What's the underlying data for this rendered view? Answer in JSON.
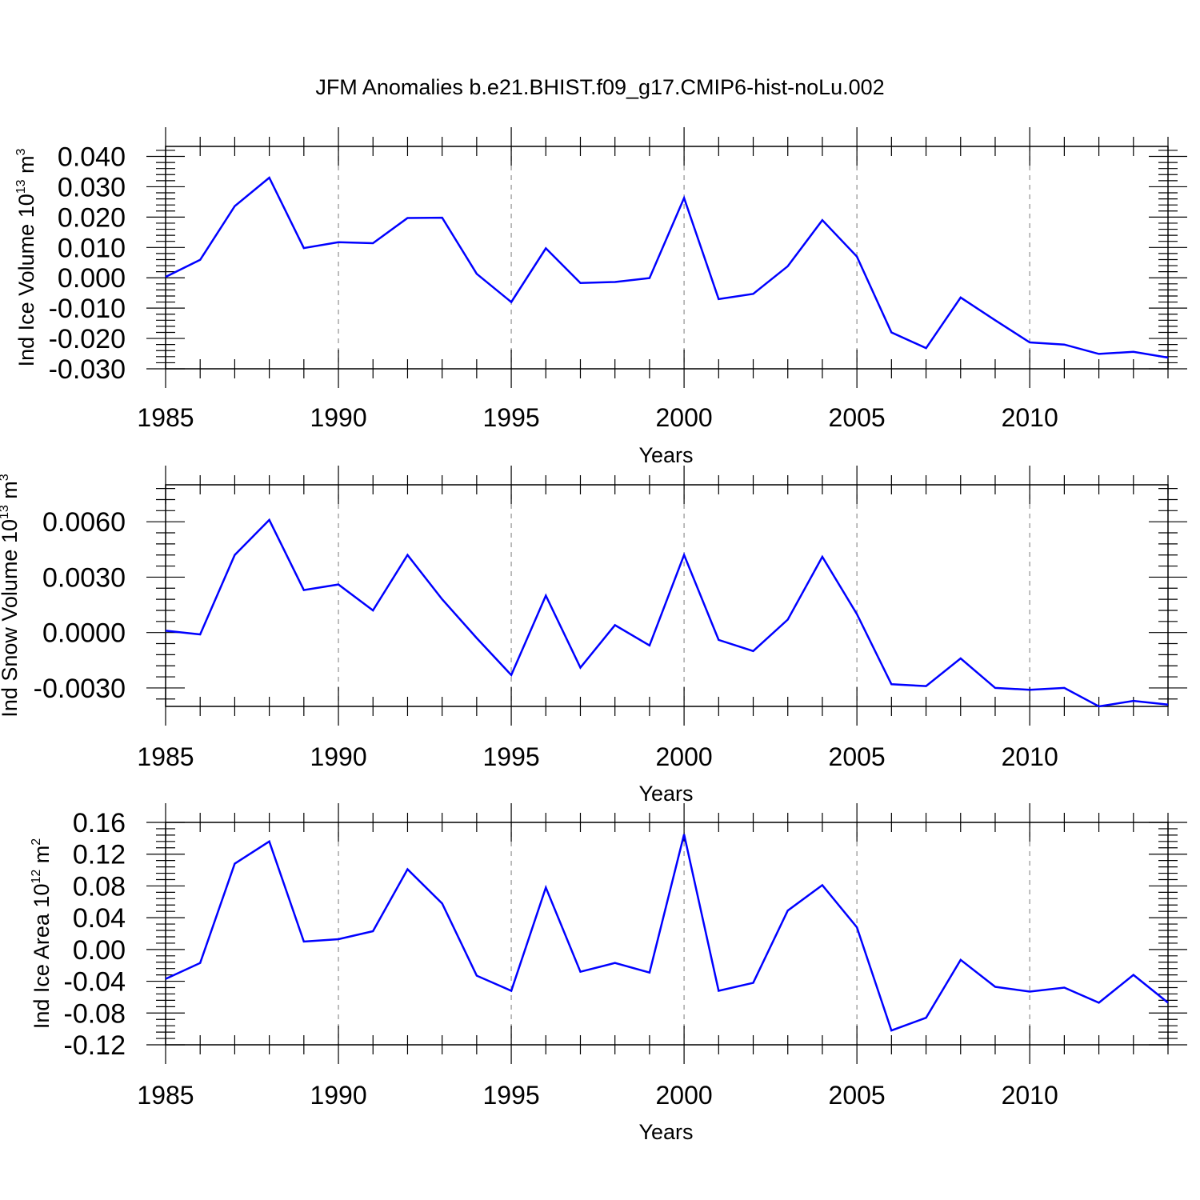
{
  "figure_title": "JFM Anomalies b.e21.BHIST.f09_g17.CMIP6-hist-noLu.002",
  "colors": {
    "series": "#0000ff",
    "grid": "#999999",
    "axis": "#000000"
  },
  "chart_data": [
    {
      "type": "line",
      "ylabel": {
        "text": "Ind Ice Volume 10",
        "exp": "13",
        "unit": " m",
        "unit_exp": "3"
      },
      "xlabel": "Years",
      "xlim": [
        1985,
        2014
      ],
      "ylim": [
        -0.03,
        0.0433
      ],
      "yticks": [
        0.04,
        0.03,
        0.02,
        0.01,
        0.0,
        -0.01,
        -0.02,
        -0.03
      ],
      "ytick_labels": [
        "0.040",
        "0.030",
        "0.020",
        "0.010",
        "0.000",
        "-0.010",
        "-0.020",
        "-0.030"
      ],
      "xticks": [
        1985,
        1990,
        1995,
        2000,
        2005,
        2010
      ],
      "xtick_labels": [
        "1985",
        "1990",
        "1995",
        "2000",
        "2005",
        "2010"
      ],
      "grid_x": [
        1990,
        1995,
        2000,
        2005,
        2010
      ],
      "x": [
        1985,
        1986,
        1987,
        1988,
        1989,
        1990,
        1991,
        1992,
        1993,
        1994,
        1995,
        1996,
        1997,
        1998,
        1999,
        2000,
        2001,
        2002,
        2003,
        2004,
        2005,
        2006,
        2007,
        2008,
        2009,
        2010,
        2011,
        2012,
        2013,
        2014
      ],
      "values": [
        0.0003,
        0.0059,
        0.0236,
        0.033,
        0.0098,
        0.0117,
        0.0114,
        0.0197,
        0.0198,
        0.0013,
        -0.008,
        0.0097,
        -0.0017,
        -0.0014,
        -0.0001,
        0.0263,
        -0.007,
        -0.0053,
        0.0038,
        0.019,
        0.007,
        -0.018,
        -0.0232,
        -0.0065,
        -0.014,
        -0.0213,
        -0.022,
        -0.0251,
        -0.0244,
        -0.0263
      ]
    },
    {
      "type": "line",
      "ylabel": {
        "text": "Ind Snow Volume 10",
        "exp": "13",
        "unit": " m",
        "unit_exp": "3"
      },
      "xlabel": "Years",
      "xlim": [
        1985,
        2014
      ],
      "ylim": [
        -0.004,
        0.008
      ],
      "yticks": [
        0.006,
        0.003,
        0.0,
        -0.003
      ],
      "ytick_labels": [
        "0.0060",
        "0.0030",
        "0.0000",
        "-0.0030"
      ],
      "xticks": [
        1985,
        1990,
        1995,
        2000,
        2005,
        2010
      ],
      "xtick_labels": [
        "1985",
        "1990",
        "1995",
        "2000",
        "2005",
        "2010"
      ],
      "grid_x": [
        1990,
        1995,
        2000,
        2005,
        2010
      ],
      "x": [
        1985,
        1986,
        1987,
        1988,
        1989,
        1990,
        1991,
        1992,
        1993,
        1994,
        1995,
        1996,
        1997,
        1998,
        1999,
        2000,
        2001,
        2002,
        2003,
        2004,
        2005,
        2006,
        2007,
        2008,
        2009,
        2010,
        2011,
        2012,
        2013,
        2014
      ],
      "values": [
        0.0001,
        -0.0001,
        0.0042,
        0.0061,
        0.0023,
        0.0026,
        0.0012,
        0.0042,
        0.0018,
        -0.0003,
        -0.0023,
        0.002,
        -0.0019,
        0.0004,
        -0.0007,
        0.0042,
        -0.0004,
        -0.001,
        0.0007,
        0.0041,
        0.001,
        -0.0028,
        -0.0029,
        -0.0014,
        -0.003,
        -0.0031,
        -0.003,
        -0.004,
        -0.0037,
        -0.0039
      ]
    },
    {
      "type": "line",
      "ylabel": {
        "text": "Ind Ice Area 10",
        "exp": "12",
        "unit": " m",
        "unit_exp": "2"
      },
      "xlabel": "Years",
      "xlim": [
        1985,
        2014
      ],
      "ylim": [
        -0.12,
        0.16
      ],
      "yticks": [
        0.16,
        0.12,
        0.08,
        0.04,
        0.0,
        -0.04,
        -0.08,
        -0.12
      ],
      "ytick_labels": [
        "0.16",
        "0.12",
        "0.08",
        "0.04",
        "0.00",
        "-0.04",
        "-0.08",
        "-0.12"
      ],
      "xticks": [
        1985,
        1990,
        1995,
        2000,
        2005,
        2010
      ],
      "xtick_labels": [
        "1985",
        "1990",
        "1995",
        "2000",
        "2005",
        "2010"
      ],
      "grid_x": [
        1990,
        1995,
        2000,
        2005,
        2010
      ],
      "x": [
        1985,
        1986,
        1987,
        1988,
        1989,
        1990,
        1991,
        1992,
        1993,
        1994,
        1995,
        1996,
        1997,
        1998,
        1999,
        2000,
        2001,
        2002,
        2003,
        2004,
        2005,
        2006,
        2007,
        2008,
        2009,
        2010,
        2011,
        2012,
        2013,
        2014
      ],
      "values": [
        -0.037,
        -0.017,
        0.108,
        0.136,
        0.01,
        0.013,
        0.023,
        0.101,
        0.058,
        -0.033,
        -0.052,
        0.078,
        -0.028,
        -0.017,
        -0.029,
        0.145,
        -0.052,
        -0.042,
        0.049,
        0.081,
        0.028,
        -0.102,
        -0.086,
        -0.013,
        -0.047,
        -0.053,
        -0.048,
        -0.067,
        -0.032,
        -0.067
      ]
    }
  ]
}
